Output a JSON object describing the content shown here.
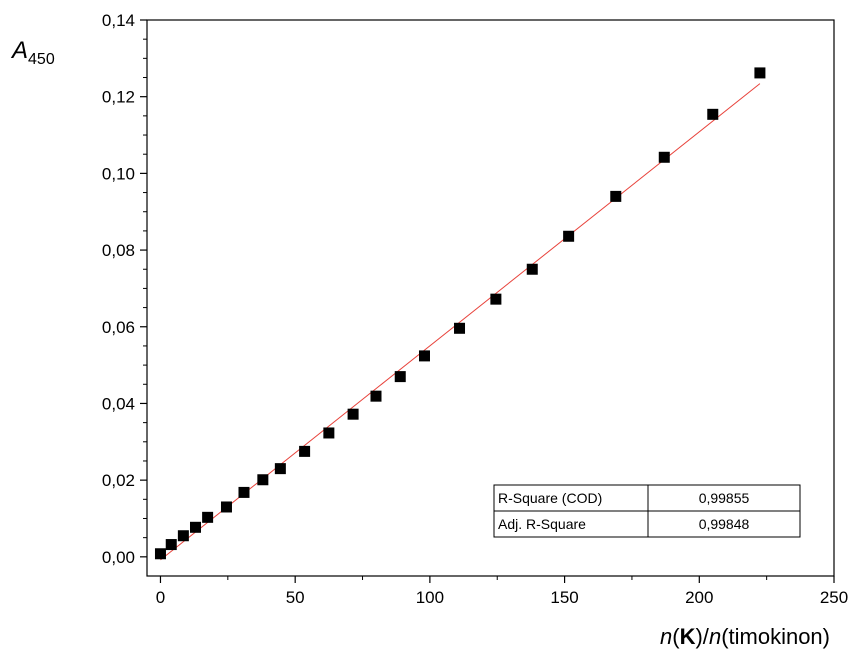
{
  "chart_data": {
    "type": "scatter",
    "xlabel_parts": [
      "n",
      "(",
      "K",
      ")/",
      "n",
      "(timokinon)"
    ],
    "ylabel_main": "A",
    "ylabel_sub": "450",
    "xlim": [
      -5,
      250
    ],
    "ylim": [
      -0.005,
      0.14
    ],
    "x_ticks": [
      0,
      50,
      100,
      150,
      200,
      250
    ],
    "x_tick_labels": [
      "0",
      "50",
      "100",
      "150",
      "200",
      "250"
    ],
    "y_ticks": [
      0.0,
      0.02,
      0.04,
      0.06,
      0.08,
      0.1,
      0.12,
      0.14
    ],
    "y_tick_labels": [
      "0,00",
      "0,02",
      "0,04",
      "0,06",
      "0,08",
      "0,10",
      "0,12",
      "0,14"
    ],
    "points": {
      "x": [
        0,
        4,
        8.5,
        13,
        17.5,
        24.5,
        31,
        38,
        44.5,
        53.5,
        62.5,
        71.5,
        80,
        89,
        98,
        111,
        124.5,
        138,
        151.5,
        169,
        187,
        205,
        222.5
      ],
      "y": [
        0.0008,
        0.0032,
        0.0055,
        0.0077,
        0.0103,
        0.013,
        0.0168,
        0.0201,
        0.023,
        0.0275,
        0.0323,
        0.0372,
        0.0419,
        0.047,
        0.0524,
        0.0596,
        0.0672,
        0.075,
        0.0836,
        0.094,
        0.1042,
        0.1154,
        0.1262
      ]
    },
    "fit_line": {
      "x": [
        0,
        222.5
      ],
      "y": [
        -0.0008,
        0.1234
      ]
    },
    "marker_color": "#000000",
    "fit_color": "#e8413a",
    "grid": false,
    "stats_table": {
      "rows": [
        {
          "label": "R-Square (COD)",
          "value": "0,99855"
        },
        {
          "label": "Adj. R-Square",
          "value": "0,99848"
        }
      ]
    }
  }
}
